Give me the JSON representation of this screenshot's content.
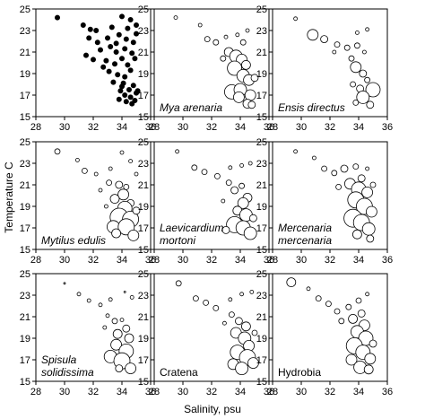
{
  "chart_data": {
    "type": "scatter",
    "xlabel": "Salinity, psu",
    "ylabel": "Temperature C",
    "xlim": [
      28,
      36
    ],
    "ylim": [
      15,
      25
    ],
    "xticks": [
      28,
      30,
      32,
      34,
      36
    ],
    "yticks": [
      15,
      17,
      19,
      21,
      23,
      25
    ],
    "panels": [
      {
        "label": "",
        "italic": false,
        "filled": true,
        "points": [
          [
            29.5,
            24.2
          ],
          [
            31.3,
            23.5
          ],
          [
            31.8,
            23.1
          ],
          [
            32.2,
            23.0
          ],
          [
            33.3,
            23.3
          ],
          [
            34.0,
            24.3
          ],
          [
            34.6,
            24.0
          ],
          [
            35.0,
            23.5
          ],
          [
            31.7,
            22.3
          ],
          [
            32.3,
            21.9
          ],
          [
            33.0,
            22.3
          ],
          [
            33.8,
            22.6
          ],
          [
            34.3,
            22.2
          ],
          [
            34.8,
            21.9
          ],
          [
            35.0,
            22.7
          ],
          [
            33.2,
            21.5
          ],
          [
            32.5,
            21.2
          ],
          [
            33.6,
            21.0
          ],
          [
            34.2,
            21.3
          ],
          [
            34.7,
            20.9
          ],
          [
            32.9,
            20.2
          ],
          [
            33.5,
            19.9
          ],
          [
            34.0,
            20.4
          ],
          [
            34.4,
            19.8
          ],
          [
            33.1,
            19.2
          ],
          [
            33.7,
            18.9
          ],
          [
            34.2,
            18.7
          ],
          [
            34.6,
            19.3
          ],
          [
            33.4,
            18.2
          ],
          [
            34.0,
            17.8
          ],
          [
            34.5,
            17.5
          ],
          [
            34.8,
            17.9
          ],
          [
            35.0,
            17.2
          ],
          [
            34.2,
            17.0
          ],
          [
            34.6,
            16.8
          ],
          [
            34.9,
            16.5
          ],
          [
            35.1,
            17.4
          ],
          [
            33.8,
            16.6
          ],
          [
            34.3,
            16.4
          ],
          [
            34.7,
            16.2
          ],
          [
            33.9,
            17.4
          ],
          [
            34.1,
            18.1
          ],
          [
            32.7,
            19.6
          ],
          [
            32.0,
            20.3
          ],
          [
            31.5,
            20.7
          ],
          [
            33.6,
            21.8
          ],
          [
            34.9,
            20.4
          ],
          [
            34.4,
            23.2
          ]
        ]
      },
      {
        "label": "Mya arenaria",
        "italic": true,
        "filled": false,
        "points": [
          [
            29.5,
            24.2,
            2
          ],
          [
            31.2,
            23.5,
            2
          ],
          [
            31.7,
            22.2,
            3
          ],
          [
            32.3,
            21.9,
            3
          ],
          [
            33.0,
            22.4,
            2
          ],
          [
            33.8,
            22.6,
            2
          ],
          [
            34.5,
            23.0,
            2
          ],
          [
            34.2,
            21.9,
            3
          ],
          [
            33.2,
            21.0,
            5
          ],
          [
            33.7,
            20.6,
            7
          ],
          [
            34.1,
            20.3,
            6
          ],
          [
            34.4,
            19.8,
            5
          ],
          [
            33.6,
            19.5,
            8
          ],
          [
            34.2,
            18.8,
            7
          ],
          [
            34.6,
            18.4,
            6
          ],
          [
            33.4,
            17.3,
            8
          ],
          [
            34.0,
            17.5,
            7
          ],
          [
            34.7,
            17.0,
            6
          ],
          [
            34.5,
            16.2,
            5
          ],
          [
            33.9,
            16.8,
            6
          ],
          [
            34.8,
            16.1,
            4
          ],
          [
            32.8,
            20.4,
            3
          ],
          [
            35.0,
            18.6,
            4
          ]
        ]
      },
      {
        "label": "Ensis directus",
        "italic": true,
        "filled": false,
        "points": [
          [
            29.6,
            24.1,
            2
          ],
          [
            30.8,
            22.6,
            6
          ],
          [
            31.6,
            22.2,
            4
          ],
          [
            32.5,
            21.7,
            3
          ],
          [
            33.2,
            21.4,
            3
          ],
          [
            33.9,
            21.6,
            3
          ],
          [
            34.4,
            21.0,
            2
          ],
          [
            32.3,
            21.0,
            2
          ],
          [
            33.5,
            20.4,
            3
          ],
          [
            33.8,
            19.6,
            6
          ],
          [
            34.3,
            19.0,
            4
          ],
          [
            34.6,
            18.4,
            3
          ],
          [
            33.6,
            18.0,
            3
          ],
          [
            34.1,
            17.6,
            4
          ],
          [
            35.0,
            17.5,
            8
          ],
          [
            34.3,
            16.8,
            7
          ],
          [
            33.8,
            16.3,
            3
          ],
          [
            34.8,
            16.1,
            4
          ],
          [
            34.6,
            23.1,
            2
          ],
          [
            33.9,
            22.8,
            2
          ]
        ]
      },
      {
        "label": "Mytilus edulis",
        "italic": true,
        "filled": false,
        "points": [
          [
            29.5,
            24.1,
            3
          ],
          [
            30.9,
            23.3,
            2
          ],
          [
            31.4,
            22.3,
            3
          ],
          [
            32.2,
            22.0,
            2
          ],
          [
            33.2,
            22.5,
            2
          ],
          [
            34.0,
            24.0,
            2
          ],
          [
            34.6,
            23.2,
            2
          ],
          [
            33.1,
            21.2,
            3
          ],
          [
            33.8,
            21.0,
            4
          ],
          [
            34.3,
            20.8,
            3
          ],
          [
            34.1,
            20.1,
            6
          ],
          [
            33.5,
            19.7,
            5
          ],
          [
            34.6,
            19.3,
            4
          ],
          [
            34.2,
            18.8,
            8
          ],
          [
            33.8,
            18.0,
            10
          ],
          [
            34.6,
            17.8,
            9
          ],
          [
            33.4,
            17.1,
            7
          ],
          [
            34.3,
            17.1,
            9
          ],
          [
            34.8,
            16.3,
            6
          ],
          [
            33.6,
            16.5,
            5
          ],
          [
            35.0,
            18.6,
            4
          ],
          [
            32.5,
            20.5,
            2
          ],
          [
            32.9,
            19.0,
            2
          ],
          [
            35.0,
            22.0,
            2
          ]
        ]
      },
      {
        "label": "Laevicardium mortoni",
        "label2": "mortoni",
        "italic": true,
        "filled": false,
        "points": [
          [
            29.6,
            24.1,
            2
          ],
          [
            30.8,
            22.6,
            3
          ],
          [
            31.5,
            22.2,
            3
          ],
          [
            32.4,
            21.8,
            3
          ],
          [
            33.3,
            22.6,
            2
          ],
          [
            34.1,
            22.8,
            2
          ],
          [
            34.7,
            23.0,
            2
          ],
          [
            33.2,
            21.2,
            3
          ],
          [
            33.6,
            20.5,
            4
          ],
          [
            34.1,
            20.9,
            3
          ],
          [
            34.5,
            19.8,
            5
          ],
          [
            34.2,
            19.3,
            6
          ],
          [
            33.8,
            18.6,
            5
          ],
          [
            34.4,
            18.2,
            7
          ],
          [
            33.6,
            17.3,
            9
          ],
          [
            34.2,
            17.0,
            8
          ],
          [
            34.7,
            16.5,
            7
          ],
          [
            33.0,
            16.8,
            4
          ],
          [
            34.9,
            17.9,
            4
          ],
          [
            32.8,
            19.5,
            2
          ]
        ]
      },
      {
        "label": "Mercenaria mercenaria",
        "label2": "mercenaria",
        "italic": true,
        "filled": false,
        "points": [
          [
            29.6,
            24.1,
            2
          ],
          [
            30.9,
            23.5,
            2
          ],
          [
            31.6,
            22.5,
            3
          ],
          [
            32.3,
            22.1,
            3
          ],
          [
            33.0,
            22.5,
            4
          ],
          [
            33.8,
            22.7,
            3
          ],
          [
            34.6,
            22.5,
            2
          ],
          [
            34.2,
            21.6,
            4
          ],
          [
            33.4,
            21.1,
            6
          ],
          [
            34.0,
            20.6,
            8
          ],
          [
            34.6,
            20.3,
            6
          ],
          [
            33.8,
            19.6,
            9
          ],
          [
            34.4,
            19.0,
            9
          ],
          [
            34.9,
            18.5,
            6
          ],
          [
            33.6,
            17.9,
            10
          ],
          [
            34.2,
            17.5,
            9
          ],
          [
            34.7,
            16.9,
            7
          ],
          [
            33.9,
            16.4,
            5
          ],
          [
            34.8,
            16.0,
            4
          ],
          [
            35.0,
            21.0,
            3
          ],
          [
            32.6,
            20.8,
            3
          ]
        ]
      },
      {
        "label": "Spisula solidissima",
        "label2": "solidissima",
        "italic": true,
        "filled": false,
        "points": [
          [
            30.0,
            24.1,
            1
          ],
          [
            31.0,
            23.1,
            2
          ],
          [
            31.7,
            22.5,
            2
          ],
          [
            32.5,
            22.1,
            2
          ],
          [
            33.2,
            22.6,
            2
          ],
          [
            34.2,
            23.3,
            1
          ],
          [
            34.7,
            22.8,
            2
          ],
          [
            33.0,
            21.1,
            2
          ],
          [
            33.5,
            20.6,
            3
          ],
          [
            34.0,
            20.7,
            2
          ],
          [
            34.3,
            19.9,
            4
          ],
          [
            33.7,
            19.4,
            5
          ],
          [
            34.5,
            19.0,
            5
          ],
          [
            33.6,
            18.4,
            6
          ],
          [
            34.3,
            17.8,
            8
          ],
          [
            33.2,
            17.3,
            7
          ],
          [
            34.0,
            16.9,
            9
          ],
          [
            34.6,
            16.2,
            6
          ],
          [
            33.8,
            16.2,
            4
          ],
          [
            32.8,
            20.0,
            2
          ]
        ]
      },
      {
        "label": "Cratena",
        "italic": false,
        "filled": false,
        "points": [
          [
            29.7,
            24.1,
            3
          ],
          [
            30.9,
            22.7,
            3
          ],
          [
            31.6,
            22.3,
            3
          ],
          [
            32.3,
            21.8,
            3
          ],
          [
            33.3,
            22.6,
            2
          ],
          [
            34.1,
            23.1,
            2
          ],
          [
            34.8,
            23.3,
            2
          ],
          [
            33.4,
            21.2,
            3
          ],
          [
            33.9,
            20.6,
            4
          ],
          [
            34.4,
            20.1,
            5
          ],
          [
            33.7,
            19.5,
            6
          ],
          [
            34.3,
            19.0,
            7
          ],
          [
            34.6,
            18.3,
            6
          ],
          [
            33.8,
            17.7,
            8
          ],
          [
            34.5,
            17.2,
            9
          ],
          [
            33.5,
            16.6,
            6
          ],
          [
            34.1,
            16.2,
            7
          ],
          [
            34.9,
            16.7,
            6
          ],
          [
            32.9,
            20.4,
            2
          ],
          [
            35.0,
            19.5,
            3
          ]
        ]
      },
      {
        "label": "Hydrobia",
        "italic": false,
        "filled": false,
        "points": [
          [
            29.3,
            24.2,
            5
          ],
          [
            30.5,
            23.6,
            2
          ],
          [
            31.2,
            22.7,
            3
          ],
          [
            31.9,
            22.2,
            3
          ],
          [
            32.5,
            21.5,
            3
          ],
          [
            33.3,
            21.9,
            3
          ],
          [
            34.0,
            22.5,
            3
          ],
          [
            34.6,
            23.1,
            2
          ],
          [
            34.2,
            21.3,
            4
          ],
          [
            33.6,
            20.8,
            5
          ],
          [
            34.4,
            20.2,
            6
          ],
          [
            33.9,
            19.6,
            7
          ],
          [
            34.5,
            19.0,
            8
          ],
          [
            33.7,
            18.3,
            9
          ],
          [
            34.3,
            17.7,
            8
          ],
          [
            34.8,
            17.1,
            6
          ],
          [
            33.5,
            17.0,
            6
          ],
          [
            34.1,
            16.3,
            7
          ],
          [
            34.7,
            16.1,
            5
          ],
          [
            32.8,
            20.6,
            3
          ],
          [
            35.0,
            18.5,
            4
          ]
        ]
      }
    ]
  }
}
